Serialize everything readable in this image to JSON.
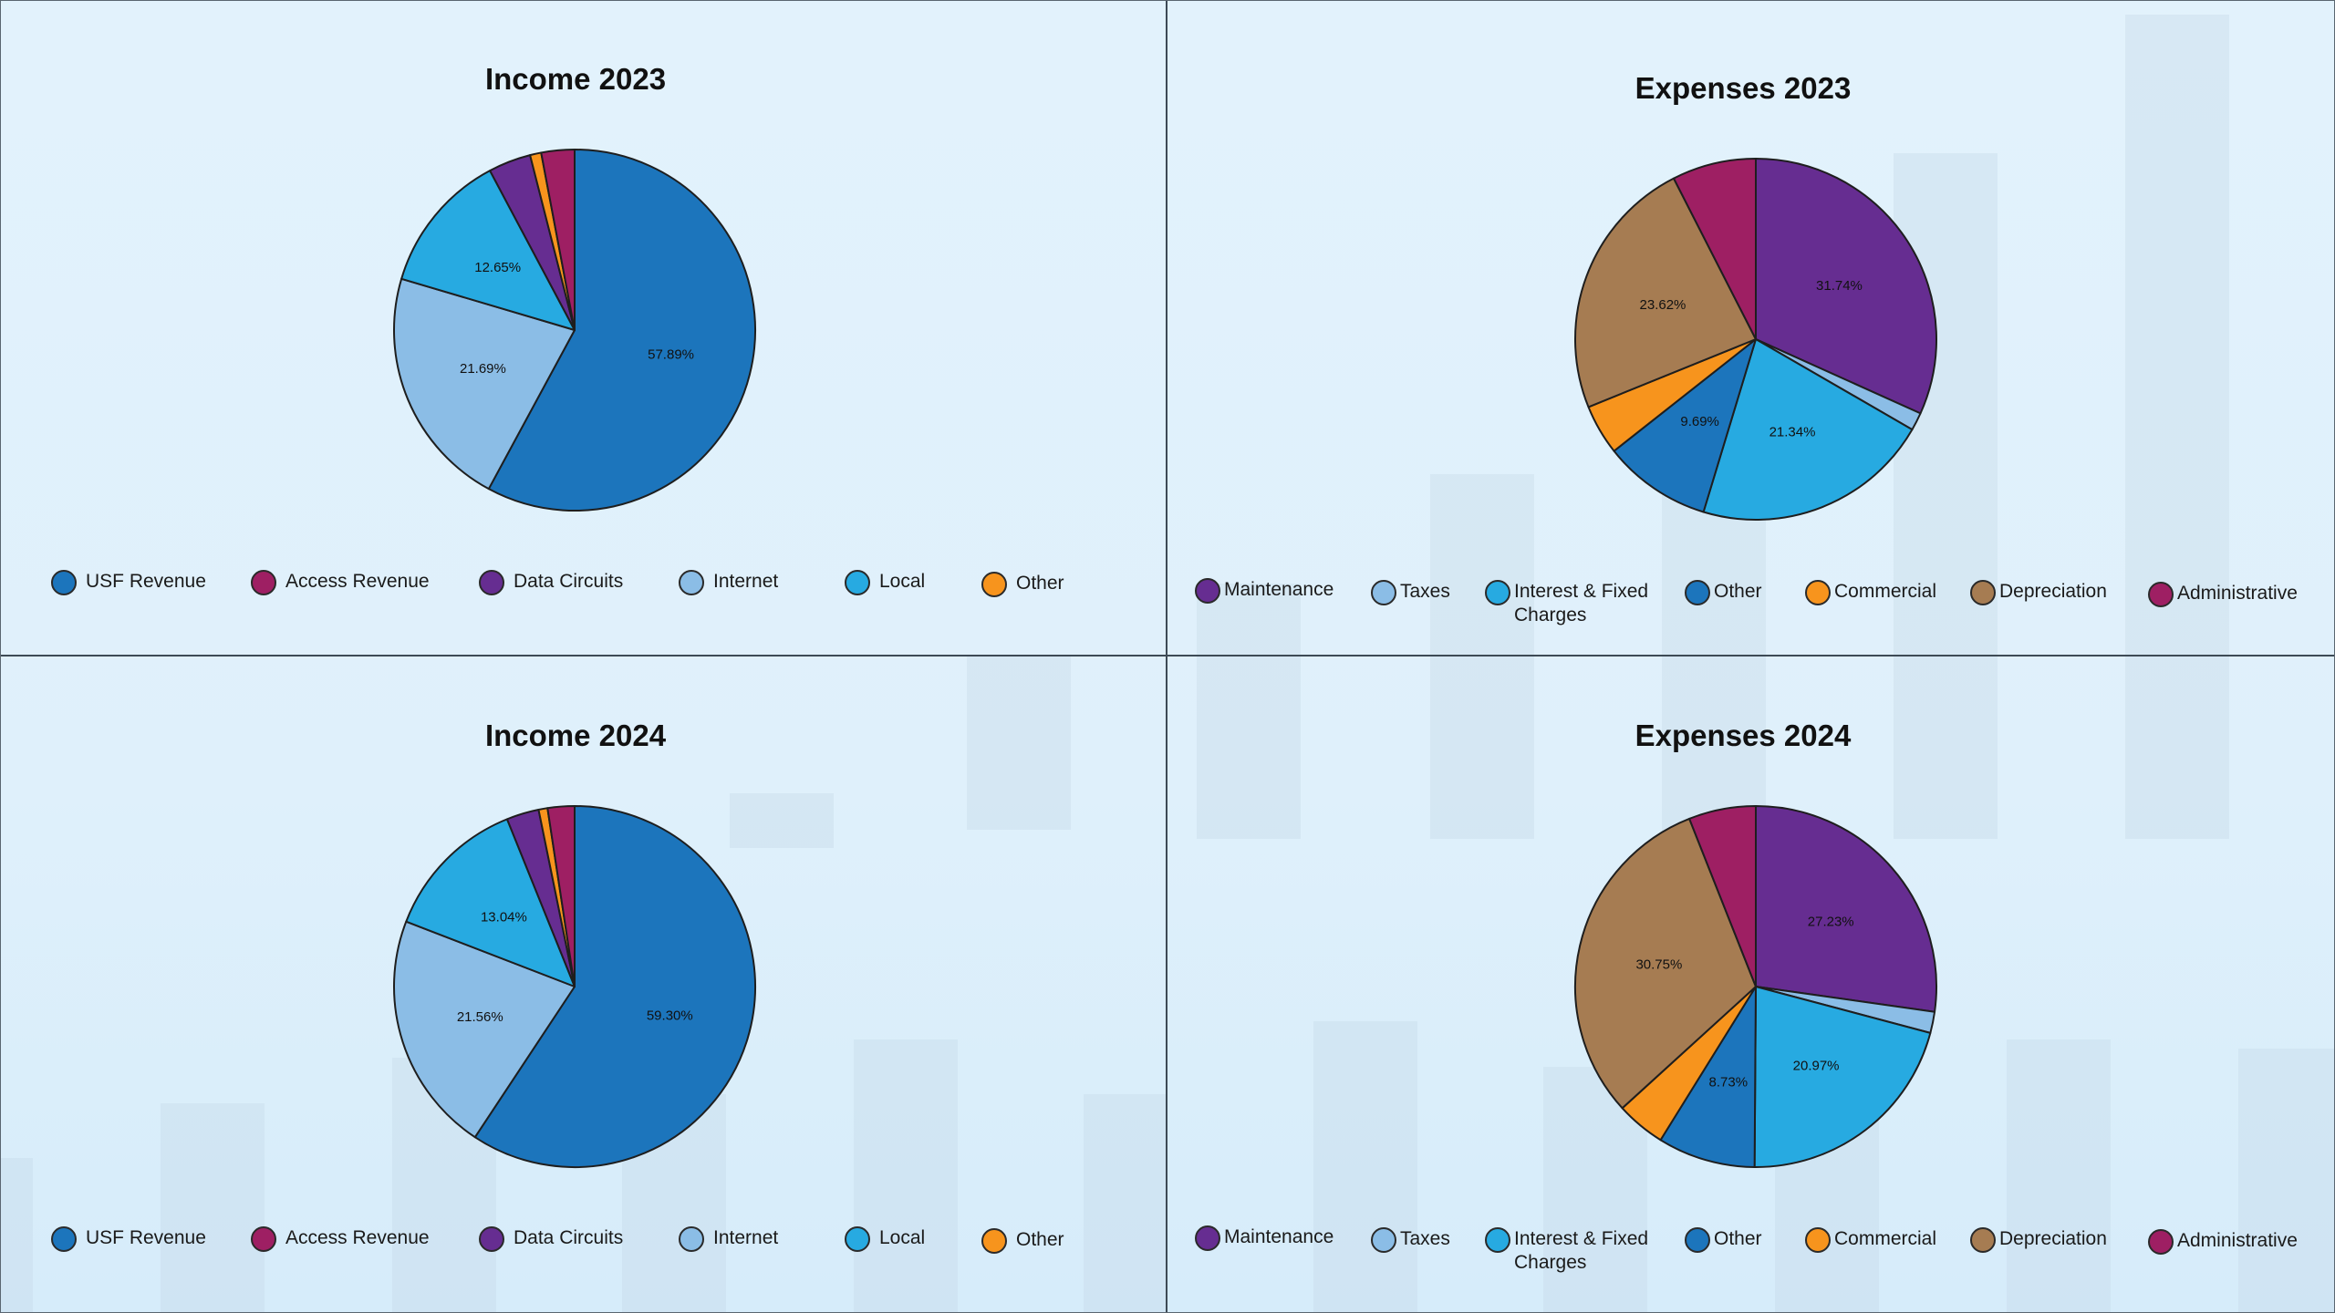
{
  "chart_data": [
    {
      "type": "pie",
      "title": "Income 2023",
      "labels": [
        "USF Revenue",
        "Internet",
        "Local",
        "Data Circuits",
        "Other",
        "Access Revenue"
      ],
      "values": [
        57.89,
        21.69,
        12.65,
        3.8,
        1.0,
        2.97
      ],
      "colors": [
        "#1c75bc",
        "#8bbde6",
        "#27aae1",
        "#662d91",
        "#f7941d",
        "#9e1f63"
      ],
      "data_labels": [
        "57.89%",
        "21.69%",
        "12.65%",
        "",
        "",
        ""
      ],
      "legend": [
        {
          "label": "USF Revenue",
          "color": "#1c75bc"
        },
        {
          "label": "Access Revenue",
          "color": "#9e1f63"
        },
        {
          "label": "Data Circuits",
          "color": "#662d91"
        },
        {
          "label": "Internet",
          "color": "#8bbde6"
        },
        {
          "label": "Local",
          "color": "#27aae1"
        },
        {
          "label": "Other",
          "color": "#f7941d"
        }
      ]
    },
    {
      "type": "pie",
      "title": "Expenses 2023",
      "labels": [
        "Maintenance",
        "Taxes",
        "Interest & Fixed Charges",
        "Other",
        "Commercial",
        "Depreciation",
        "Administrative"
      ],
      "values": [
        31.74,
        1.6,
        21.34,
        9.69,
        4.5,
        23.62,
        7.51
      ],
      "colors": [
        "#662d91",
        "#8bbde6",
        "#27aae1",
        "#1c75bc",
        "#f7941d",
        "#a67c52",
        "#9e1f63"
      ],
      "data_labels": [
        "31.74%",
        "",
        "21.34%",
        "9.69%",
        "",
        "23.62%",
        ""
      ],
      "legend": [
        {
          "label": "Maintenance",
          "color": "#662d91"
        },
        {
          "label": "Taxes",
          "color": "#8bbde6"
        },
        {
          "label": "Interest & Fixed Charges",
          "color": "#27aae1"
        },
        {
          "label": "Other",
          "color": "#1c75bc"
        },
        {
          "label": "Commercial",
          "color": "#f7941d"
        },
        {
          "label": "Depreciation",
          "color": "#a67c52"
        },
        {
          "label": "Administrative",
          "color": "#9e1f63"
        }
      ]
    },
    {
      "type": "pie",
      "title": "Income 2024",
      "labels": [
        "USF Revenue",
        "Internet",
        "Local",
        "Data Circuits",
        "Other",
        "Access Revenue"
      ],
      "values": [
        59.3,
        21.56,
        13.04,
        2.9,
        0.8,
        2.4
      ],
      "colors": [
        "#1c75bc",
        "#8bbde6",
        "#27aae1",
        "#662d91",
        "#f7941d",
        "#9e1f63"
      ],
      "data_labels": [
        "59.30%",
        "21.56%",
        "13.04%",
        "",
        "",
        ""
      ],
      "legend": [
        {
          "label": "USF Revenue",
          "color": "#1c75bc"
        },
        {
          "label": "Access Revenue",
          "color": "#9e1f63"
        },
        {
          "label": "Data Circuits",
          "color": "#662d91"
        },
        {
          "label": "Internet",
          "color": "#8bbde6"
        },
        {
          "label": "Local",
          "color": "#27aae1"
        },
        {
          "label": "Other",
          "color": "#f7941d"
        }
      ]
    },
    {
      "type": "pie",
      "title": "Expenses 2024",
      "labels": [
        "Maintenance",
        "Taxes",
        "Interest & Fixed Charges",
        "Other",
        "Commercial",
        "Depreciation",
        "Administrative"
      ],
      "values": [
        27.23,
        1.9,
        20.97,
        8.73,
        4.4,
        30.75,
        6.0
      ],
      "colors": [
        "#662d91",
        "#8bbde6",
        "#27aae1",
        "#1c75bc",
        "#f7941d",
        "#a67c52",
        "#9e1f63"
      ],
      "data_labels": [
        "27.23%",
        "",
        "20.97%",
        "8.73%",
        "",
        "30.75%",
        ""
      ],
      "legend": [
        {
          "label": "Maintenance",
          "color": "#662d91"
        },
        {
          "label": "Taxes",
          "color": "#8bbde6"
        },
        {
          "label": "Interest & Fixed Charges",
          "color": "#27aae1"
        },
        {
          "label": "Other",
          "color": "#1c75bc"
        },
        {
          "label": "Commercial",
          "color": "#f7941d"
        },
        {
          "label": "Depreciation",
          "color": "#a67c52"
        },
        {
          "label": "Administrative",
          "color": "#9e1f63"
        }
      ]
    }
  ]
}
